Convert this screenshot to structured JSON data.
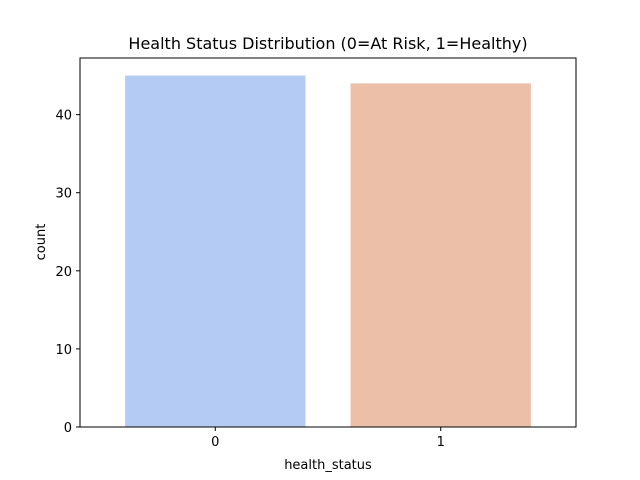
{
  "chart_data": {
    "type": "bar",
    "title": "Health Status Distribution (0=At Risk, 1=Healthy)",
    "xlabel": "health_status",
    "ylabel": "count",
    "categories": [
      "0",
      "1"
    ],
    "values": [
      45,
      44
    ],
    "colors": [
      "#b4cbf4",
      "#ecbfa8"
    ],
    "ylim": [
      0,
      47.25
    ],
    "yticks": [
      0,
      10,
      20,
      30,
      40
    ],
    "grid": false,
    "legend": "none"
  }
}
